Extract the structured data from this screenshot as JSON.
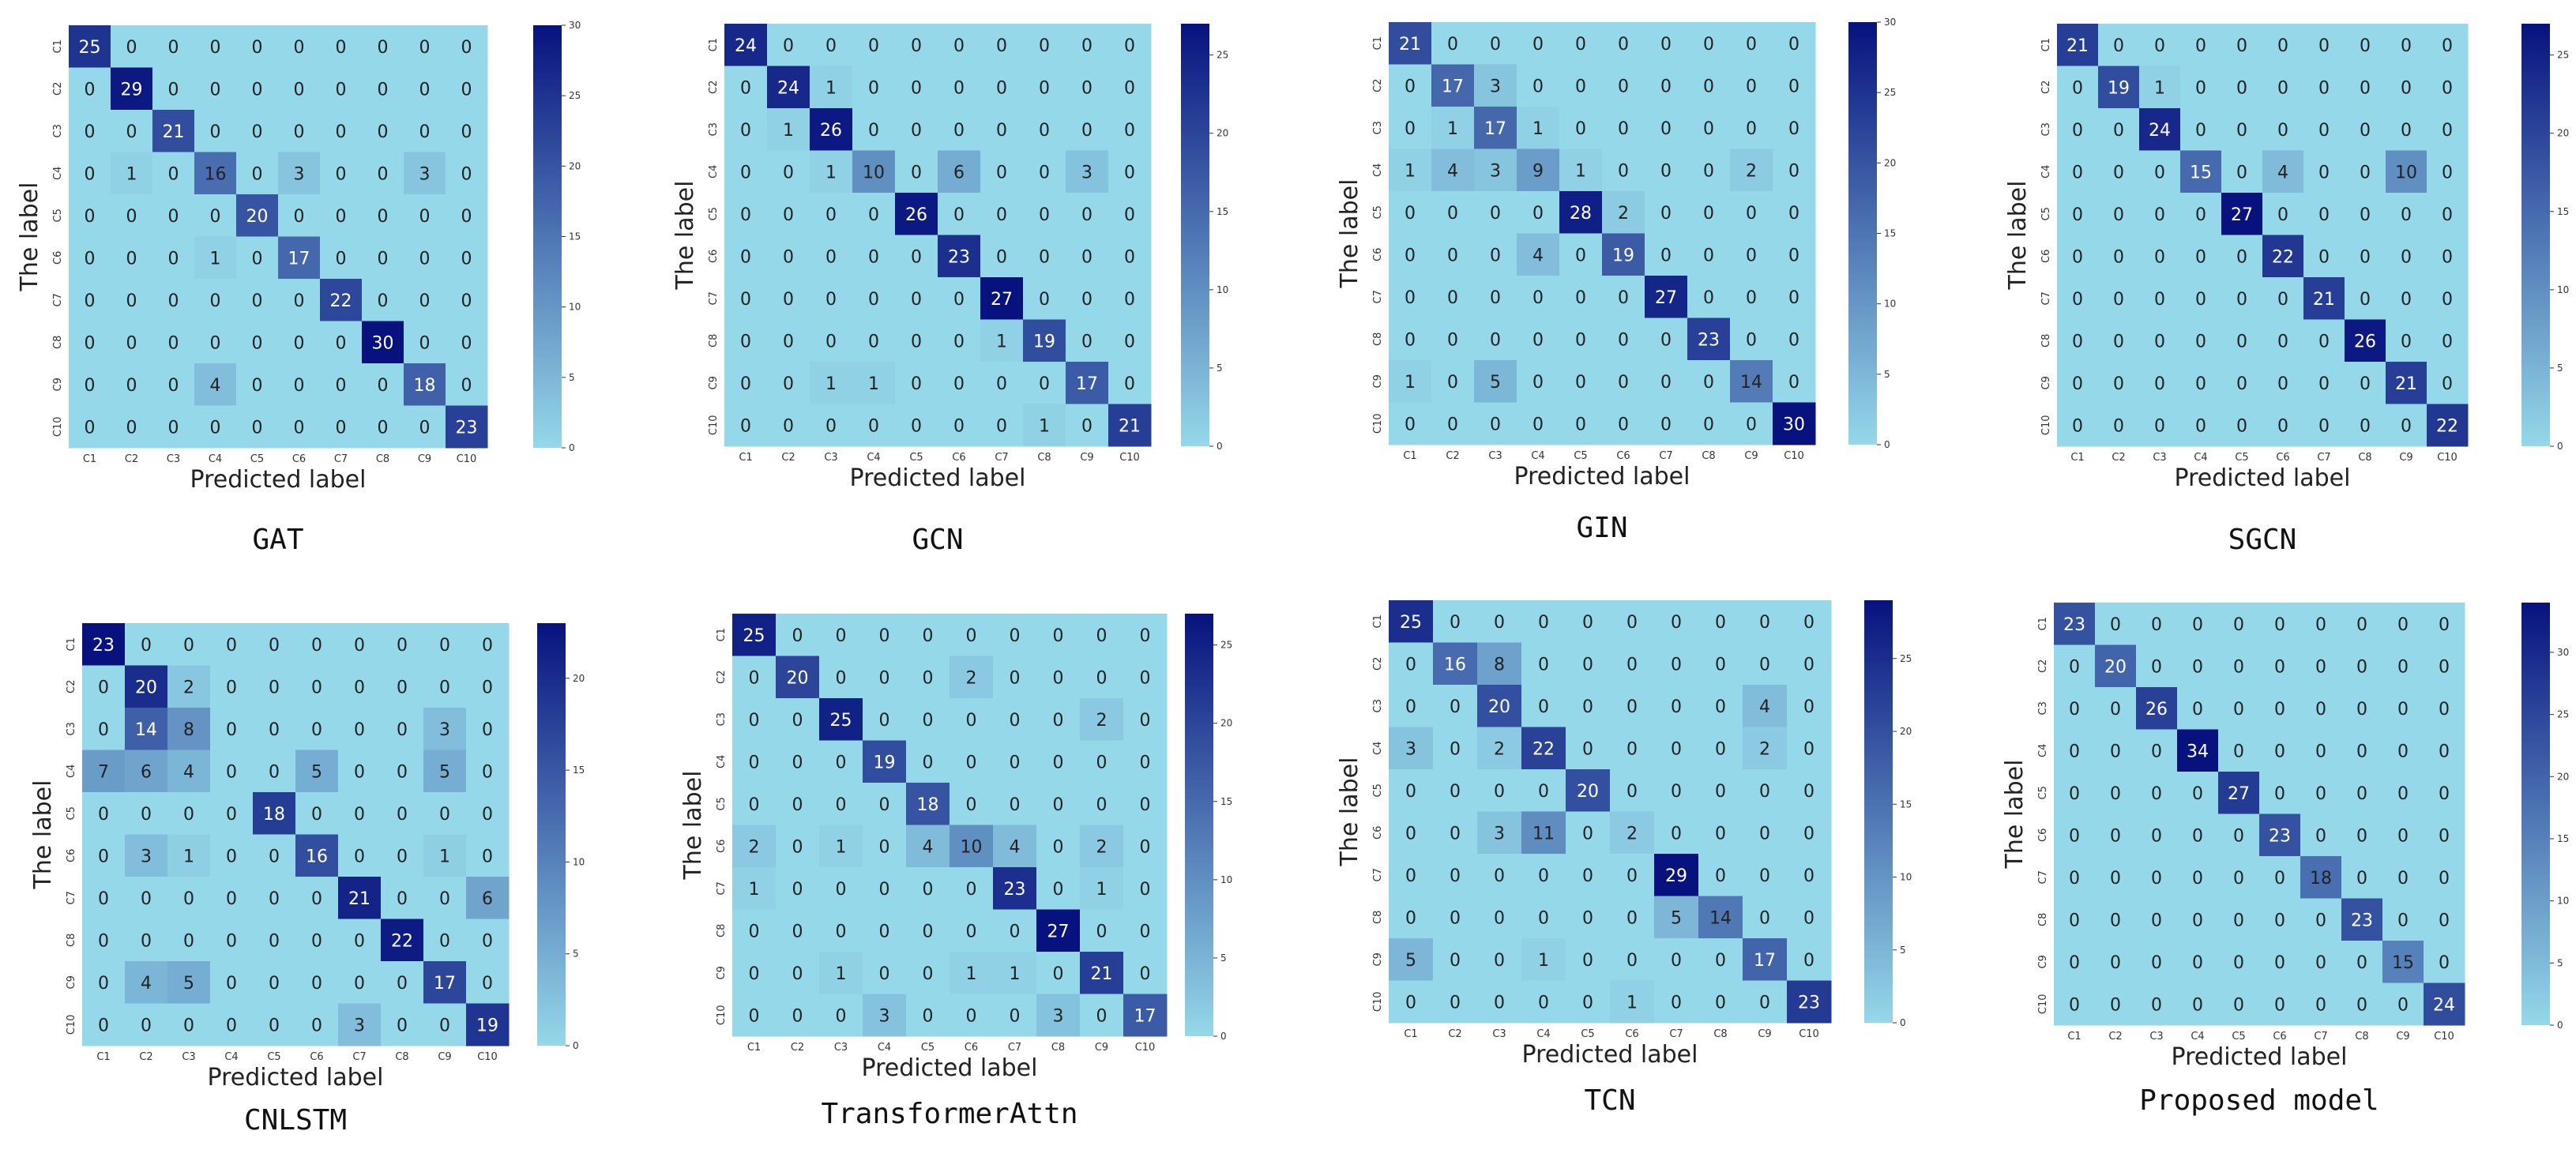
{
  "figure": {
    "xlabel": "Predicted label",
    "ylabel": "The label",
    "classes": [
      "C1",
      "C2",
      "C3",
      "C4",
      "C5",
      "C6",
      "C7",
      "C8",
      "C9",
      "C10"
    ],
    "colors": {
      "low": "#95d8e9",
      "high": "#07127e",
      "text_dark": "#222222",
      "text_light": "#ffffff"
    }
  },
  "chart_data": [
    {
      "type": "heatmap",
      "title": "GAT",
      "colorbar_ticks": [
        0,
        5,
        10,
        15,
        20,
        25,
        30
      ],
      "vmax": 30,
      "matrix": [
        [
          25,
          0,
          0,
          0,
          0,
          0,
          0,
          0,
          0,
          0
        ],
        [
          0,
          29,
          0,
          0,
          0,
          0,
          0,
          0,
          0,
          0
        ],
        [
          0,
          0,
          21,
          0,
          0,
          0,
          0,
          0,
          0,
          0
        ],
        [
          0,
          1,
          0,
          16,
          0,
          3,
          0,
          0,
          3,
          0
        ],
        [
          0,
          0,
          0,
          0,
          20,
          0,
          0,
          0,
          0,
          0
        ],
        [
          0,
          0,
          0,
          1,
          0,
          17,
          0,
          0,
          0,
          0
        ],
        [
          0,
          0,
          0,
          0,
          0,
          0,
          22,
          0,
          0,
          0
        ],
        [
          0,
          0,
          0,
          0,
          0,
          0,
          0,
          30,
          0,
          0
        ],
        [
          0,
          0,
          0,
          4,
          0,
          0,
          0,
          0,
          18,
          0
        ],
        [
          0,
          0,
          0,
          0,
          0,
          0,
          0,
          0,
          0,
          23
        ]
      ]
    },
    {
      "type": "heatmap",
      "title": "GCN",
      "colorbar_ticks": [
        0,
        5,
        10,
        15,
        20,
        25
      ],
      "vmax": 27,
      "matrix": [
        [
          24,
          0,
          0,
          0,
          0,
          0,
          0,
          0,
          0,
          0
        ],
        [
          0,
          24,
          1,
          0,
          0,
          0,
          0,
          0,
          0,
          0
        ],
        [
          0,
          1,
          26,
          0,
          0,
          0,
          0,
          0,
          0,
          0
        ],
        [
          0,
          0,
          1,
          10,
          0,
          6,
          0,
          0,
          3,
          0
        ],
        [
          0,
          0,
          0,
          0,
          26,
          0,
          0,
          0,
          0,
          0
        ],
        [
          0,
          0,
          0,
          0,
          0,
          23,
          0,
          0,
          0,
          0
        ],
        [
          0,
          0,
          0,
          0,
          0,
          0,
          27,
          0,
          0,
          0
        ],
        [
          0,
          0,
          0,
          0,
          0,
          0,
          1,
          19,
          0,
          0
        ],
        [
          0,
          0,
          1,
          1,
          0,
          0,
          0,
          0,
          17,
          0
        ],
        [
          0,
          0,
          0,
          0,
          0,
          0,
          0,
          1,
          0,
          21
        ]
      ]
    },
    {
      "type": "heatmap",
      "title": "GIN",
      "colorbar_ticks": [
        0,
        5,
        10,
        15,
        20,
        25,
        30
      ],
      "vmax": 30,
      "matrix": [
        [
          21,
          0,
          0,
          0,
          0,
          0,
          0,
          0,
          0,
          0
        ],
        [
          0,
          17,
          3,
          0,
          0,
          0,
          0,
          0,
          0,
          0
        ],
        [
          0,
          1,
          17,
          1,
          0,
          0,
          0,
          0,
          0,
          0
        ],
        [
          1,
          4,
          3,
          9,
          1,
          0,
          0,
          0,
          2,
          0
        ],
        [
          0,
          0,
          0,
          0,
          28,
          2,
          0,
          0,
          0,
          0
        ],
        [
          0,
          0,
          0,
          4,
          0,
          19,
          0,
          0,
          0,
          0
        ],
        [
          0,
          0,
          0,
          0,
          0,
          0,
          27,
          0,
          0,
          0
        ],
        [
          0,
          0,
          0,
          0,
          0,
          0,
          0,
          23,
          0,
          0
        ],
        [
          1,
          0,
          5,
          0,
          0,
          0,
          0,
          0,
          14,
          0
        ],
        [
          0,
          0,
          0,
          0,
          0,
          0,
          0,
          0,
          0,
          30
        ]
      ]
    },
    {
      "type": "heatmap",
      "title": "SGCN",
      "colorbar_ticks": [
        0,
        5,
        10,
        15,
        20,
        25
      ],
      "vmax": 27,
      "matrix": [
        [
          21,
          0,
          0,
          0,
          0,
          0,
          0,
          0,
          0,
          0
        ],
        [
          0,
          19,
          1,
          0,
          0,
          0,
          0,
          0,
          0,
          0
        ],
        [
          0,
          0,
          24,
          0,
          0,
          0,
          0,
          0,
          0,
          0
        ],
        [
          0,
          0,
          0,
          15,
          0,
          4,
          0,
          0,
          10,
          0
        ],
        [
          0,
          0,
          0,
          0,
          27,
          0,
          0,
          0,
          0,
          0
        ],
        [
          0,
          0,
          0,
          0,
          0,
          22,
          0,
          0,
          0,
          0
        ],
        [
          0,
          0,
          0,
          0,
          0,
          0,
          21,
          0,
          0,
          0
        ],
        [
          0,
          0,
          0,
          0,
          0,
          0,
          0,
          26,
          0,
          0
        ],
        [
          0,
          0,
          0,
          0,
          0,
          0,
          0,
          0,
          21,
          0
        ],
        [
          0,
          0,
          0,
          0,
          0,
          0,
          0,
          0,
          0,
          22
        ]
      ]
    },
    {
      "type": "heatmap",
      "title": "CNLSTM",
      "colorbar_ticks": [
        0,
        5,
        10,
        15,
        20
      ],
      "vmax": 23,
      "matrix": [
        [
          23,
          0,
          0,
          0,
          0,
          0,
          0,
          0,
          0,
          0
        ],
        [
          0,
          20,
          2,
          0,
          0,
          0,
          0,
          0,
          0,
          0
        ],
        [
          0,
          14,
          8,
          0,
          0,
          0,
          0,
          0,
          3,
          0
        ],
        [
          7,
          6,
          4,
          0,
          0,
          5,
          0,
          0,
          5,
          0
        ],
        [
          0,
          0,
          0,
          0,
          18,
          0,
          0,
          0,
          0,
          0
        ],
        [
          0,
          3,
          1,
          0,
          0,
          16,
          0,
          0,
          1,
          0
        ],
        [
          0,
          0,
          0,
          0,
          0,
          0,
          21,
          0,
          0,
          6
        ],
        [
          0,
          0,
          0,
          0,
          0,
          0,
          0,
          22,
          0,
          0
        ],
        [
          0,
          4,
          5,
          0,
          0,
          0,
          0,
          0,
          17,
          0
        ],
        [
          0,
          0,
          0,
          0,
          0,
          0,
          3,
          0,
          0,
          19
        ]
      ]
    },
    {
      "type": "heatmap",
      "title": "TransformerAttn",
      "colorbar_ticks": [
        0,
        5,
        10,
        15,
        20,
        25
      ],
      "vmax": 27,
      "matrix": [
        [
          25,
          0,
          0,
          0,
          0,
          0,
          0,
          0,
          0,
          0
        ],
        [
          0,
          20,
          0,
          0,
          0,
          2,
          0,
          0,
          0,
          0
        ],
        [
          0,
          0,
          25,
          0,
          0,
          0,
          0,
          0,
          2,
          0
        ],
        [
          0,
          0,
          0,
          19,
          0,
          0,
          0,
          0,
          0,
          0
        ],
        [
          0,
          0,
          0,
          0,
          18,
          0,
          0,
          0,
          0,
          0
        ],
        [
          2,
          0,
          1,
          0,
          4,
          10,
          4,
          0,
          2,
          0
        ],
        [
          1,
          0,
          0,
          0,
          0,
          0,
          23,
          0,
          1,
          0
        ],
        [
          0,
          0,
          0,
          0,
          0,
          0,
          0,
          27,
          0,
          0
        ],
        [
          0,
          0,
          1,
          0,
          0,
          1,
          1,
          0,
          21,
          0
        ],
        [
          0,
          0,
          0,
          3,
          0,
          0,
          0,
          3,
          0,
          17
        ]
      ]
    },
    {
      "type": "heatmap",
      "title": "TCN",
      "colorbar_ticks": [
        0,
        5,
        10,
        15,
        20,
        25
      ],
      "vmax": 29,
      "matrix": [
        [
          25,
          0,
          0,
          0,
          0,
          0,
          0,
          0,
          0,
          0
        ],
        [
          0,
          16,
          8,
          0,
          0,
          0,
          0,
          0,
          0,
          0
        ],
        [
          0,
          0,
          20,
          0,
          0,
          0,
          0,
          0,
          4,
          0
        ],
        [
          3,
          0,
          2,
          22,
          0,
          0,
          0,
          0,
          2,
          0
        ],
        [
          0,
          0,
          0,
          0,
          20,
          0,
          0,
          0,
          0,
          0
        ],
        [
          0,
          0,
          3,
          11,
          0,
          2,
          0,
          0,
          0,
          0
        ],
        [
          0,
          0,
          0,
          0,
          0,
          0,
          29,
          0,
          0,
          0
        ],
        [
          0,
          0,
          0,
          0,
          0,
          0,
          5,
          14,
          0,
          0
        ],
        [
          5,
          0,
          0,
          1,
          0,
          0,
          0,
          0,
          17,
          0
        ],
        [
          0,
          0,
          0,
          0,
          0,
          1,
          0,
          0,
          0,
          23
        ]
      ]
    },
    {
      "type": "heatmap",
      "title": "Proposed model",
      "colorbar_ticks": [
        0,
        5,
        10,
        15,
        20,
        25,
        30
      ],
      "vmax": 34,
      "matrix": [
        [
          23,
          0,
          0,
          0,
          0,
          0,
          0,
          0,
          0,
          0
        ],
        [
          0,
          20,
          0,
          0,
          0,
          0,
          0,
          0,
          0,
          0
        ],
        [
          0,
          0,
          26,
          0,
          0,
          0,
          0,
          0,
          0,
          0
        ],
        [
          0,
          0,
          0,
          34,
          0,
          0,
          0,
          0,
          0,
          0
        ],
        [
          0,
          0,
          0,
          0,
          27,
          0,
          0,
          0,
          0,
          0
        ],
        [
          0,
          0,
          0,
          0,
          0,
          23,
          0,
          0,
          0,
          0
        ],
        [
          0,
          0,
          0,
          0,
          0,
          0,
          18,
          0,
          0,
          0
        ],
        [
          0,
          0,
          0,
          0,
          0,
          0,
          0,
          23,
          0,
          0
        ],
        [
          0,
          0,
          0,
          0,
          0,
          0,
          0,
          0,
          15,
          0
        ],
        [
          0,
          0,
          0,
          0,
          0,
          0,
          0,
          0,
          0,
          24
        ]
      ]
    }
  ]
}
